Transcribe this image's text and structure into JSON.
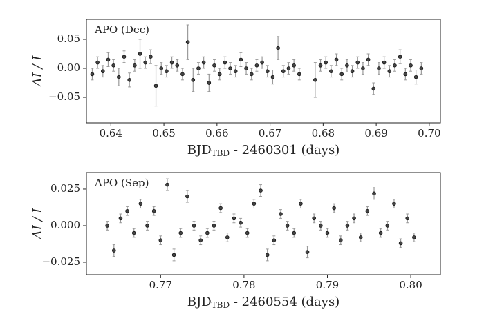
{
  "chart_data": [
    {
      "type": "scatter",
      "annotation": "APO (Dec)",
      "xlabel": {
        "main": "BJD",
        "sub": "TBD",
        "rest": " - 2460301 (days)"
      },
      "ylabel": "ΔI / I",
      "color": "#444444",
      "error_color": "#9a9a9a",
      "xlim": [
        0.6354,
        0.7021
      ],
      "ylim": [
        -0.094,
        0.0845
      ],
      "xticks": [
        0.64,
        0.65,
        0.66,
        0.67,
        0.68,
        0.69,
        {
          "value": 0.7,
          "label": "0.70"
        }
      ],
      "yticks": [
        {
          "value": -0.05,
          "label": "−0.05"
        },
        {
          "value": 0,
          "label": "0.00"
        },
        0.05
      ],
      "x": [
        0.6365,
        0.6375,
        0.6385,
        0.6395,
        0.6405,
        0.6415,
        0.6425,
        0.6435,
        0.6445,
        0.6455,
        0.6465,
        0.6475,
        0.6485,
        0.6495,
        0.6505,
        0.6515,
        0.6525,
        0.6535,
        0.6545,
        0.6555,
        0.6565,
        0.6575,
        0.6585,
        0.6595,
        0.6605,
        0.6615,
        0.6625,
        0.6635,
        0.6645,
        0.6655,
        0.6665,
        0.6675,
        0.6685,
        0.6695,
        0.6705,
        0.6715,
        0.6725,
        0.6735,
        0.6745,
        0.6755,
        0.6785,
        0.6795,
        0.6805,
        0.6815,
        0.6825,
        0.6835,
        0.6845,
        0.6855,
        0.6865,
        0.6875,
        0.6885,
        0.6895,
        0.6905,
        0.6915,
        0.6925,
        0.6935,
        0.6945,
        0.6955,
        0.6965,
        0.6975,
        0.6985
      ],
      "values": [
        -0.01,
        0.01,
        -0.005,
        0.015,
        0.005,
        -0.015,
        0.02,
        -0.02,
        0.005,
        0.025,
        0.01,
        0.02,
        -0.03,
        0.0,
        -0.005,
        0.01,
        0.005,
        -0.01,
        0.045,
        -0.02,
        0.0,
        0.01,
        -0.025,
        0.005,
        -0.01,
        0.01,
        0.0,
        -0.005,
        0.015,
        0.0,
        -0.01,
        0.005,
        0.01,
        -0.005,
        -0.015,
        0.035,
        -0.005,
        0.0,
        0.005,
        -0.01,
        -0.02,
        0.005,
        0.01,
        -0.005,
        0.015,
        -0.01,
        0.005,
        -0.005,
        0.01,
        0.0,
        0.015,
        -0.035,
        0.0,
        0.01,
        -0.005,
        0.005,
        0.02,
        -0.01,
        0.005,
        -0.015,
        0.0
      ],
      "errors": [
        0.01,
        0.01,
        0.01,
        0.012,
        0.01,
        0.015,
        0.01,
        0.012,
        0.01,
        0.025,
        0.01,
        0.012,
        0.035,
        0.01,
        0.01,
        0.01,
        0.01,
        0.01,
        0.03,
        0.02,
        0.01,
        0.01,
        0.015,
        0.01,
        0.01,
        0.01,
        0.01,
        0.01,
        0.012,
        0.01,
        0.01,
        0.01,
        0.01,
        0.01,
        0.012,
        0.02,
        0.01,
        0.01,
        0.01,
        0.01,
        0.03,
        0.01,
        0.01,
        0.01,
        0.01,
        0.01,
        0.01,
        0.01,
        0.01,
        0.01,
        0.01,
        0.01,
        0.01,
        0.01,
        0.01,
        0.01,
        0.012,
        0.01,
        0.01,
        0.012,
        0.01
      ]
    },
    {
      "type": "scatter",
      "annotation": "APO (Sep)",
      "xlabel": {
        "main": "BJD",
        "sub": "TBD",
        "rest": " - 2460554 (days)"
      },
      "ylabel": "ΔI / I",
      "color": "#444444",
      "error_color": "#9a9a9a",
      "xlim": [
        0.7611,
        0.80356
      ],
      "ylim": [
        -0.0335,
        0.0363
      ],
      "xticks": [
        0.77,
        0.78,
        0.79,
        {
          "value": 0.8,
          "label": "0.80"
        }
      ],
      "yticks": [
        {
          "value": -0.025,
          "label": "−0.025"
        },
        {
          "value": 0,
          "label": "0.000"
        },
        0.025
      ],
      "x": [
        0.7636,
        0.7644,
        0.7652,
        0.766,
        0.7668,
        0.7676,
        0.7684,
        0.7692,
        0.77,
        0.7708,
        0.7716,
        0.7724,
        0.7732,
        0.774,
        0.7748,
        0.7756,
        0.7764,
        0.7772,
        0.778,
        0.7788,
        0.7796,
        0.7804,
        0.7812,
        0.782,
        0.7828,
        0.7836,
        0.7844,
        0.7852,
        0.786,
        0.7868,
        0.7876,
        0.7884,
        0.7892,
        0.79,
        0.7908,
        0.7916,
        0.7924,
        0.7932,
        0.794,
        0.7948,
        0.7956,
        0.7964,
        0.7972,
        0.798,
        0.7988,
        0.7996,
        0.8004
      ],
      "values": [
        0.0,
        -0.017,
        0.005,
        0.01,
        -0.005,
        0.015,
        0.0,
        0.01,
        -0.01,
        0.028,
        -0.02,
        -0.005,
        0.02,
        0.0,
        -0.01,
        -0.005,
        0.0,
        0.012,
        -0.008,
        0.005,
        0.002,
        -0.005,
        0.015,
        0.024,
        -0.02,
        -0.01,
        0.008,
        0.0,
        -0.005,
        0.015,
        -0.018,
        0.005,
        0.0,
        -0.005,
        0.012,
        -0.01,
        0.0,
        0.005,
        -0.008,
        0.01,
        0.022,
        -0.005,
        0.0,
        0.015,
        -0.012,
        0.005,
        -0.008
      ],
      "errors": [
        0.003,
        0.004,
        0.003,
        0.003,
        0.003,
        0.003,
        0.003,
        0.003,
        0.003,
        0.004,
        0.004,
        0.003,
        0.004,
        0.003,
        0.003,
        0.003,
        0.003,
        0.003,
        0.003,
        0.003,
        0.003,
        0.003,
        0.003,
        0.004,
        0.004,
        0.003,
        0.003,
        0.003,
        0.003,
        0.003,
        0.004,
        0.003,
        0.003,
        0.003,
        0.003,
        0.003,
        0.003,
        0.003,
        0.003,
        0.003,
        0.004,
        0.003,
        0.003,
        0.003,
        0.003,
        0.003,
        0.003
      ]
    }
  ]
}
